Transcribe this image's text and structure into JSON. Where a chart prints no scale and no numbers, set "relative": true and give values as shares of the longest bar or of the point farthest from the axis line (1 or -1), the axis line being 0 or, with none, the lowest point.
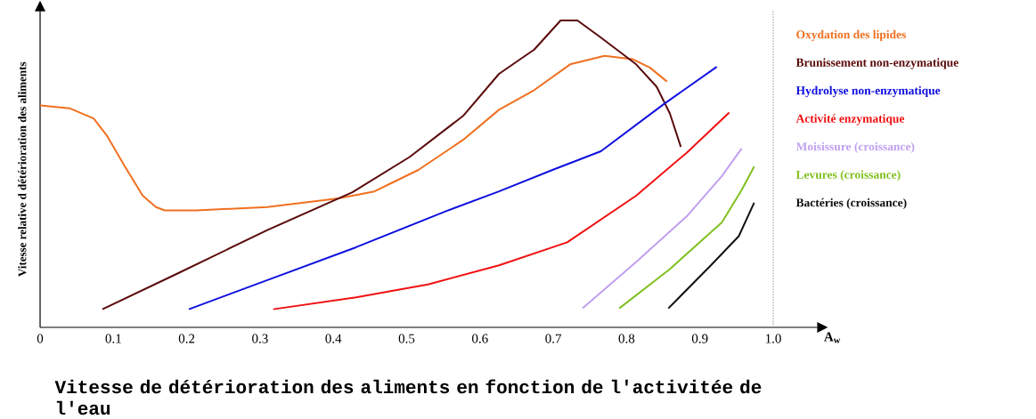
{
  "chart_data": {
    "type": "line",
    "relative": true,
    "title": "Vitesse de détérioration des aliments en fonction de l'activitée de l'eau",
    "xlabel": "A$_{w}$",
    "ylabel": "Vitesse relative d détérioration des aliments",
    "xlim": [
      0,
      1.06
    ],
    "xticks": [
      0,
      0.1,
      0.2,
      0.3,
      0.4,
      0.5,
      0.6,
      0.7,
      0.8,
      0.9,
      {
        "value": 1.0,
        "label": "1.0"
      }
    ],
    "legend": "right",
    "grid": false,
    "ref_lines": [
      {
        "axis": "x",
        "value": 1.0,
        "color": "#909090",
        "line_style": "dotted"
      }
    ],
    "series": [
      {
        "name": "Oxydation des lipides",
        "color": "#f07020",
        "x": [
          0,
          0.04,
          0.073,
          0.091,
          0.115,
          0.14,
          0.158,
          0.17,
          0.213,
          0.31,
          0.407,
          0.456,
          0.48,
          0.516,
          0.577,
          0.626,
          0.674,
          0.723,
          0.77,
          0.808,
          0.832,
          0.855
        ],
        "values": [
          0.723,
          0.714,
          0.681,
          0.625,
          0.527,
          0.429,
          0.392,
          0.381,
          0.381,
          0.392,
          0.42,
          0.443,
          0.471,
          0.513,
          0.611,
          0.709,
          0.773,
          0.857,
          0.885,
          0.874,
          0.846,
          0.801
        ]
      },
      {
        "name": "Brunissement non-enzymatique",
        "color": "#5a0a0a",
        "x": [
          0.085,
          0.188,
          0.31,
          0.426,
          0.504,
          0.577,
          0.626,
          0.674,
          0.71,
          0.733,
          0.765,
          0.813,
          0.841,
          0.859,
          0.874
        ],
        "values": [
          0.059,
          0.176,
          0.317,
          0.44,
          0.555,
          0.689,
          0.826,
          0.905,
          1.0,
          1.0,
          0.944,
          0.857,
          0.784,
          0.697,
          0.588
        ]
      },
      {
        "name": "Hydrolyse non-enzymatique",
        "color": "#1010e0",
        "x": [
          0.203,
          0.31,
          0.431,
          0.553,
          0.626,
          0.699,
          0.765,
          0.851,
          0.923
        ],
        "values": [
          0.059,
          0.154,
          0.261,
          0.378,
          0.443,
          0.513,
          0.574,
          0.728,
          0.849
        ]
      },
      {
        "name": "Activité enzymatique",
        "color": "#f01010",
        "x": [
          0.318,
          0.431,
          0.529,
          0.626,
          0.719,
          0.813,
          0.882,
          0.94
        ],
        "values": [
          0.059,
          0.098,
          0.14,
          0.202,
          0.277,
          0.429,
          0.569,
          0.7
        ]
      },
      {
        "name": "Moisissure (croissance)",
        "color": "#c0a0f0",
        "x": [
          0.74,
          0.813,
          0.883,
          0.93,
          0.957
        ],
        "values": [
          0.062,
          0.213,
          0.364,
          0.493,
          0.583
        ]
      },
      {
        "name": "Levures (croissance)",
        "color": "#80c020",
        "x": [
          0.79,
          0.859,
          0.93,
          0.957,
          0.974
        ],
        "values": [
          0.062,
          0.19,
          0.342,
          0.448,
          0.524
        ]
      },
      {
        "name": "Bactéries (croissance)",
        "color": "#101010",
        "x": [
          0.857,
          0.915,
          0.953,
          0.974
        ],
        "values": [
          0.062,
          0.202,
          0.297,
          0.406
        ]
      }
    ]
  }
}
